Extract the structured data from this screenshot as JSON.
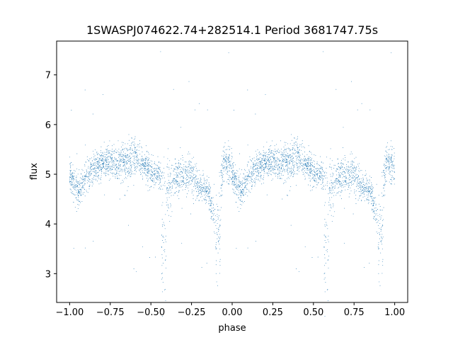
{
  "chart_data": {
    "type": "scatter",
    "title": "1SWASPJ074622.74+282514.1 Period 3681747.75s",
    "xlabel": "phase",
    "ylabel": "flux",
    "xlim": [
      -1.08,
      1.08
    ],
    "ylim": [
      2.42,
      7.68
    ],
    "xticks": [
      -1.0,
      -0.75,
      -0.5,
      -0.25,
      0.0,
      0.25,
      0.5,
      0.75,
      1.0
    ],
    "xtick_labels": [
      "−1.00",
      "−0.75",
      "−0.50",
      "−0.25",
      "0.00",
      "0.25",
      "0.50",
      "0.75",
      "1.00"
    ],
    "yticks": [
      3,
      4,
      5,
      6,
      7
    ],
    "ytick_labels": [
      "3",
      "4",
      "5",
      "6",
      "7"
    ],
    "grid": false,
    "marker_color": "#1f77b4",
    "phase_range": [
      -1.0,
      1.0
    ],
    "folded_period": 1.0,
    "series": [
      {
        "profile": [
          {
            "phase": -1.0,
            "flux": 5.0,
            "spread": 0.35
          },
          {
            "phase": -0.95,
            "flux": 4.65,
            "spread": 0.25
          },
          {
            "phase": -0.9,
            "flux": 4.95,
            "spread": 0.3
          },
          {
            "phase": -0.8,
            "flux": 5.25,
            "spread": 0.25
          },
          {
            "phase": -0.7,
            "flux": 5.2,
            "spread": 0.3
          },
          {
            "phase": -0.6,
            "flux": 5.35,
            "spread": 0.3
          },
          {
            "phase": -0.5,
            "flux": 5.05,
            "spread": 0.25
          },
          {
            "phase": -0.45,
            "flux": 5.0,
            "spread": 0.25
          },
          {
            "phase": -0.4,
            "flux": 4.7,
            "spread": 0.5
          },
          {
            "phase": -0.35,
            "flux": 4.95,
            "spread": 0.35
          },
          {
            "phase": -0.25,
            "flux": 5.0,
            "spread": 0.3
          },
          {
            "phase": -0.2,
            "flux": 4.75,
            "spread": 0.25
          },
          {
            "phase": -0.15,
            "flux": 4.7,
            "spread": 0.25
          },
          {
            "phase": -0.1,
            "flux": 4.0,
            "spread": 0.4
          },
          {
            "phase": -0.05,
            "flux": 5.3,
            "spread": 0.3
          },
          {
            "phase": 0.0,
            "flux": 5.0,
            "spread": 0.35
          }
        ],
        "dips": [
          {
            "phase": -0.42,
            "flux": 3.4,
            "spread": 0.4
          },
          {
            "phase": -0.085,
            "flux": 3.75,
            "spread": 0.35
          }
        ]
      }
    ]
  }
}
